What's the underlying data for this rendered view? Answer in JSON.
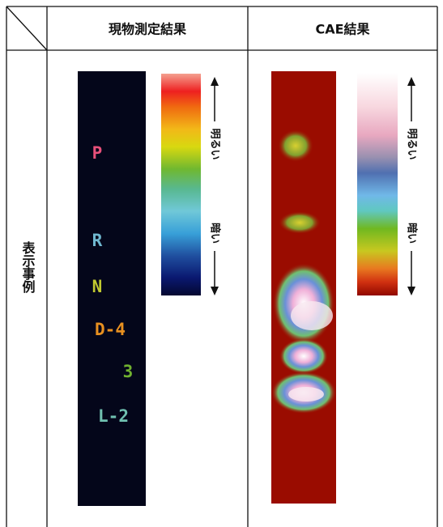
{
  "header": {
    "columns": [
      "現物測定結果",
      "CAE結果"
    ]
  },
  "row": {
    "label": "表示事例"
  },
  "measured": {
    "indicators": [
      "P",
      "R",
      "N",
      "D-4",
      "3",
      "L-2"
    ],
    "legend": {
      "bright": "明るい",
      "dark": "暗い"
    }
  },
  "cae": {
    "legend": {
      "bright": "明るい",
      "dark": "暗い"
    }
  }
}
